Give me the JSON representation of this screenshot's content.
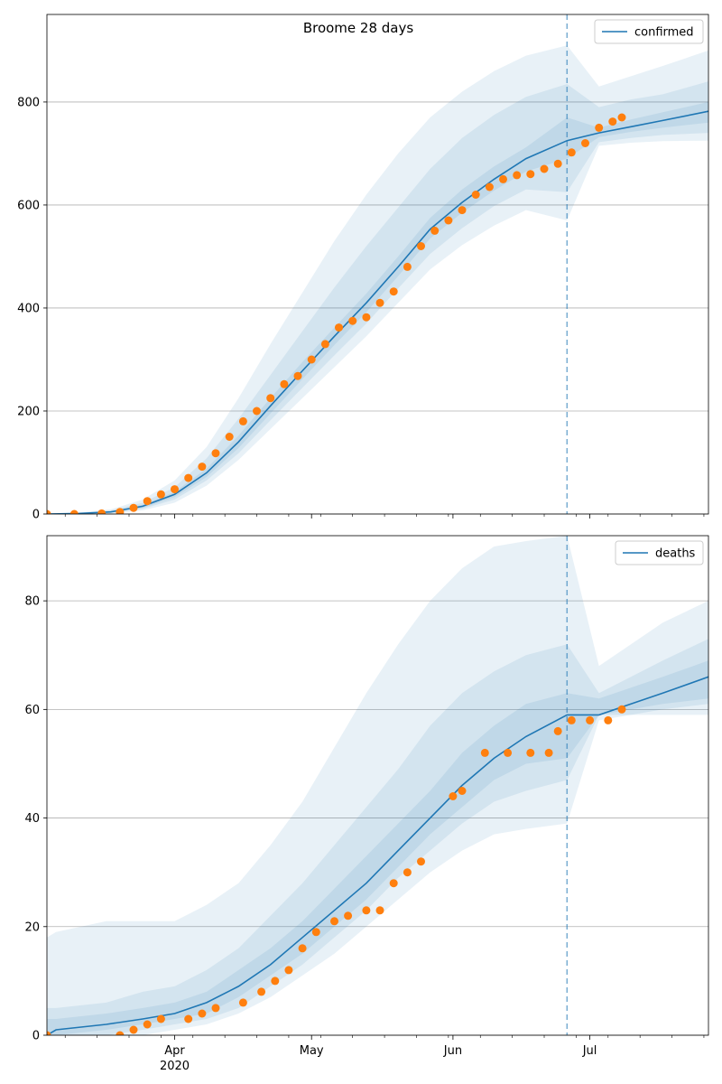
{
  "figure_title": "Broome 28 days",
  "chart_data": [
    {
      "type": "line",
      "title": "Broome 28 days",
      "legend": {
        "label": "confirmed",
        "placement": "top-right"
      },
      "xlim": [
        "2020-03-04",
        "2020-07-27"
      ],
      "ylim": [
        0,
        970
      ],
      "yticks": [
        0,
        200,
        400,
        600,
        800
      ],
      "grid": "horizontal",
      "forecast_start": "2020-06-26",
      "colors": {
        "line": "#1f77b4",
        "band": "#1f77b4",
        "points": "#ff7f0e"
      },
      "model": {
        "x": [
          "2020-03-04",
          "2020-03-11",
          "2020-03-18",
          "2020-03-25",
          "2020-04-01",
          "2020-04-08",
          "2020-04-15",
          "2020-04-22",
          "2020-04-29",
          "2020-05-06",
          "2020-05-13",
          "2020-05-20",
          "2020-05-27",
          "2020-06-03",
          "2020-06-10",
          "2020-06-17",
          "2020-06-26",
          "2020-07-03",
          "2020-07-10",
          "2020-07-17",
          "2020-07-27"
        ],
        "median": [
          0,
          1,
          4,
          15,
          38,
          80,
          140,
          210,
          278,
          345,
          410,
          480,
          553,
          605,
          650,
          690,
          725,
          740,
          752,
          764,
          782
        ],
        "bands": [
          {
            "lower": [
              0,
              0,
              1,
              7,
              22,
              55,
              105,
              165,
              225,
              285,
              345,
              410,
              475,
              522,
              560,
              590,
              570,
              715,
              721,
              724,
              725
            ],
            "upper": [
              1,
              3,
              9,
              28,
              65,
              130,
              225,
              330,
              430,
              530,
              620,
              700,
              770,
              820,
              860,
              890,
              910,
              830,
              850,
              870,
              900
            ]
          },
          {
            "lower": [
              0,
              0,
              2,
              10,
              28,
              65,
              118,
              182,
              245,
              308,
              370,
              438,
              505,
              555,
              598,
              630,
              625,
              722,
              730,
              736,
              740
            ],
            "upper": [
              1,
              2,
              7,
              22,
              52,
              108,
              185,
              270,
              355,
              440,
              520,
              595,
              670,
              730,
              775,
              810,
              835,
              790,
              805,
              815,
              840
            ]
          },
          {
            "lower": [
              0,
              0,
              3,
              12,
              33,
              72,
              128,
              195,
              262,
              328,
              392,
              462,
              535,
              585,
              628,
              665,
              690,
              732,
              742,
              750,
              760
            ],
            "upper": [
              0,
              1,
              5,
              18,
              43,
              88,
              152,
              225,
              295,
              362,
              428,
              500,
              575,
              630,
              675,
              712,
              770,
              750,
              766,
              780,
              800
            ]
          }
        ]
      },
      "observed": {
        "x": [
          "2020-03-04",
          "2020-03-10",
          "2020-03-16",
          "2020-03-20",
          "2020-03-23",
          "2020-03-26",
          "2020-03-29",
          "2020-04-01",
          "2020-04-04",
          "2020-04-07",
          "2020-04-10",
          "2020-04-13",
          "2020-04-16",
          "2020-04-19",
          "2020-04-22",
          "2020-04-25",
          "2020-04-28",
          "2020-05-01",
          "2020-05-04",
          "2020-05-07",
          "2020-05-10",
          "2020-05-13",
          "2020-05-16",
          "2020-05-19",
          "2020-05-22",
          "2020-05-25",
          "2020-05-28",
          "2020-05-31",
          "2020-06-03",
          "2020-06-06",
          "2020-06-09",
          "2020-06-12",
          "2020-06-15",
          "2020-06-18",
          "2020-06-21",
          "2020-06-24",
          "2020-06-27",
          "2020-06-30",
          "2020-07-03",
          "2020-07-06",
          "2020-07-08"
        ],
        "y": [
          0,
          0,
          1,
          4,
          12,
          25,
          38,
          48,
          70,
          92,
          118,
          150,
          180,
          200,
          225,
          252,
          268,
          300,
          330,
          362,
          375,
          382,
          410,
          432,
          480,
          520,
          550,
          570,
          590,
          620,
          635,
          650,
          658,
          660,
          670,
          680,
          702,
          720,
          750,
          762,
          770
        ]
      }
    },
    {
      "type": "line",
      "legend": {
        "label": "deaths",
        "placement": "top-right"
      },
      "xlim": [
        "2020-03-04",
        "2020-07-27"
      ],
      "ylim": [
        0,
        92
      ],
      "yticks": [
        0,
        20,
        40,
        60,
        80
      ],
      "xticks_major": [
        {
          "date": "2020-04-01",
          "label": "Apr",
          "sublabel": "2020"
        },
        {
          "date": "2020-05-01",
          "label": "May"
        },
        {
          "date": "2020-06-01",
          "label": "Jun"
        },
        {
          "date": "2020-07-01",
          "label": "Jul"
        }
      ],
      "grid": "horizontal",
      "forecast_start": "2020-06-26",
      "colors": {
        "line": "#1f77b4",
        "band": "#1f77b4",
        "points": "#ff7f0e"
      },
      "model": {
        "x": [
          "2020-03-04",
          "2020-03-06",
          "2020-03-17",
          "2020-03-25",
          "2020-04-01",
          "2020-04-08",
          "2020-04-15",
          "2020-04-22",
          "2020-04-29",
          "2020-05-06",
          "2020-05-13",
          "2020-05-20",
          "2020-05-27",
          "2020-06-03",
          "2020-06-10",
          "2020-06-17",
          "2020-06-26",
          "2020-07-03",
          "2020-07-10",
          "2020-07-17",
          "2020-07-27"
        ],
        "median": [
          0,
          1,
          2,
          3,
          4,
          6,
          9,
          13,
          18,
          23,
          28,
          34,
          40,
          46,
          51,
          55,
          59,
          59,
          61,
          63,
          66
        ],
        "bands": [
          {
            "lower": [
              0,
              0,
              0,
              0,
              1,
              2,
              4,
              7,
              11,
              15,
              20,
              25,
              30,
              34,
              37,
              38,
              39,
              58,
              59,
              59,
              59
            ],
            "upper": [
              18,
              19,
              21,
              21,
              21,
              24,
              28,
              35,
              43,
              53,
              63,
              72,
              80,
              86,
              90,
              91,
              92,
              68,
              72,
              76,
              80
            ]
          },
          {
            "lower": [
              0,
              0,
              0,
              1,
              2,
              3,
              5,
              9,
              13,
              18,
              23,
              29,
              34,
              39,
              43,
              45,
              47,
              59,
              59,
              60,
              61
            ],
            "upper": [
              5,
              5,
              6,
              8,
              9,
              12,
              16,
              22,
              28,
              35,
              42,
              49,
              57,
              63,
              67,
              70,
              72,
              63,
              66,
              69,
              73
            ]
          },
          {
            "lower": [
              0,
              0,
              1,
              2,
              3,
              4,
              7,
              11,
              15,
              20,
              25,
              31,
              37,
              42,
              47,
              50,
              51,
              59,
              60,
              61,
              62
            ],
            "upper": [
              3,
              3,
              4,
              5,
              6,
              8,
              12,
              16,
              21,
              27,
              33,
              39,
              45,
              52,
              57,
              61,
              63,
              62,
              64,
              66,
              69
            ]
          }
        ]
      },
      "observed": {
        "x": [
          "2020-03-04",
          "2020-03-20",
          "2020-03-23",
          "2020-03-26",
          "2020-03-29",
          "2020-04-04",
          "2020-04-07",
          "2020-04-10",
          "2020-04-16",
          "2020-04-20",
          "2020-04-23",
          "2020-04-26",
          "2020-04-29",
          "2020-05-02",
          "2020-05-06",
          "2020-05-09",
          "2020-05-13",
          "2020-05-16",
          "2020-05-19",
          "2020-05-22",
          "2020-05-25",
          "2020-06-01",
          "2020-06-03",
          "2020-06-08",
          "2020-06-13",
          "2020-06-18",
          "2020-06-22",
          "2020-06-24",
          "2020-06-27",
          "2020-07-01",
          "2020-07-05",
          "2020-07-08"
        ],
        "y": [
          0,
          0,
          1,
          2,
          3,
          3,
          4,
          5,
          6,
          8,
          10,
          12,
          16,
          19,
          21,
          22,
          23,
          23,
          28,
          30,
          32,
          44,
          45,
          52,
          52,
          52,
          52,
          56,
          58,
          58,
          58,
          60
        ]
      }
    }
  ]
}
